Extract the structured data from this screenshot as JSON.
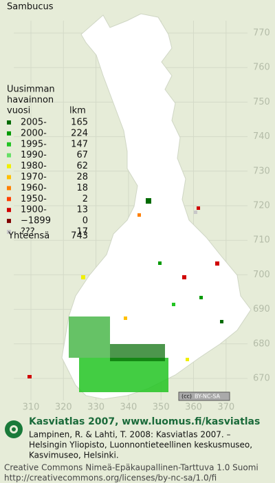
{
  "title": "Sambucus",
  "legend": {
    "header": [
      "Uusimman",
      "havainnon",
      "vuosi"
    ],
    "count_header": "lkm",
    "rows": [
      {
        "label": "2005-",
        "count": 165,
        "color": "#006a00"
      },
      {
        "label": "2000-",
        "count": 224,
        "color": "#009a00"
      },
      {
        "label": "1995-",
        "count": 147,
        "color": "#22c422"
      },
      {
        "label": "1990-",
        "count": 67,
        "color": "#66e066"
      },
      {
        "label": "1980-",
        "count": 62,
        "color": "#f0f000"
      },
      {
        "label": "1970-",
        "count": 28,
        "color": "#ffc000"
      },
      {
        "label": "1960-",
        "count": 18,
        "color": "#ff8000"
      },
      {
        "label": "1950-",
        "count": 2,
        "color": "#ff4000"
      },
      {
        "label": "1900-",
        "count": 13,
        "color": "#d00000"
      },
      {
        "label": "−1899",
        "count": 0,
        "color": "#800000"
      },
      {
        "label": "???",
        "count": 17,
        "color": "#c8c8c8"
      }
    ],
    "total_label": "Yhteensä",
    "total": 743
  },
  "map": {
    "y_labels": [
      770,
      760,
      750,
      740,
      730,
      720,
      710,
      700,
      690,
      680,
      670
    ],
    "x_labels": [
      310,
      320,
      330,
      340,
      350,
      360,
      370
    ],
    "license_badge": "BY-NC-SA"
  },
  "footer": {
    "site": "Kasviatlas 2007, www.luomus.fi/kasviatlas",
    "citation": [
      "Lampinen, R. & Lahti, T. 2008: Kasviatlas 2007. –",
      "Helsingin Yliopisto, Luonnontieteellinen keskusmuseo,",
      "Kasvimuseo, Helsinki."
    ],
    "license": "Creative Commons Nimeä-Epäkaupallinen-Tarttuva 1.0 Suomi",
    "url": "http://creativecommons.org/licenses/by-nc-sa/1.0/fi"
  }
}
